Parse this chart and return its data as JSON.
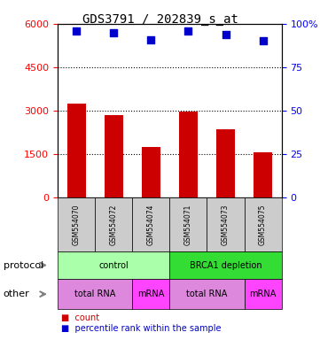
{
  "title": "GDS3791 / 202839_s_at",
  "samples": [
    "GSM554070",
    "GSM554072",
    "GSM554074",
    "GSM554071",
    "GSM554073",
    "GSM554075"
  ],
  "counts": [
    3250,
    2850,
    1750,
    2950,
    2350,
    1550
  ],
  "percentiles": [
    96,
    95,
    91,
    96,
    94,
    90
  ],
  "ylim_left": [
    0,
    6000
  ],
  "ylim_right": [
    0,
    100
  ],
  "yticks_left": [
    0,
    1500,
    3000,
    4500,
    6000
  ],
  "yticks_right": [
    0,
    25,
    50,
    75,
    100
  ],
  "bar_color": "#cc0000",
  "dot_color": "#0000cc",
  "protocol_labels": [
    [
      "control",
      3
    ],
    [
      "BRCA1 depletion",
      3
    ]
  ],
  "protocol_colors": [
    "#aaffaa",
    "#33dd33"
  ],
  "other_labels": [
    [
      "total RNA",
      2
    ],
    [
      "mRNA",
      1
    ],
    [
      "total RNA",
      2
    ],
    [
      "mRNA",
      1
    ]
  ],
  "other_colors": [
    "#dd88dd",
    "#ff44ff",
    "#dd88dd",
    "#ff44ff"
  ],
  "left_labels": [
    "protocol",
    "other"
  ],
  "sample_box_color": "#cccccc",
  "legend_count_color": "#cc0000",
  "legend_dot_color": "#0000cc"
}
